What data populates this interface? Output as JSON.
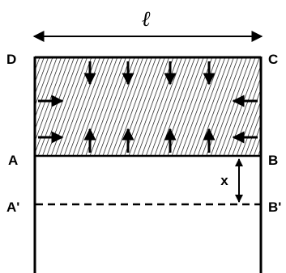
{
  "diagram": {
    "length_label": "ℓ",
    "corners": {
      "top_left": "D",
      "top_right": "C",
      "bottom_left": "A",
      "bottom_right": "B"
    },
    "shifted": {
      "left": "A'",
      "right": "B'"
    },
    "displacement_label": "x",
    "colors": {
      "ink": "#000000",
      "background": "#ffffff",
      "hatch": "#000000"
    }
  }
}
